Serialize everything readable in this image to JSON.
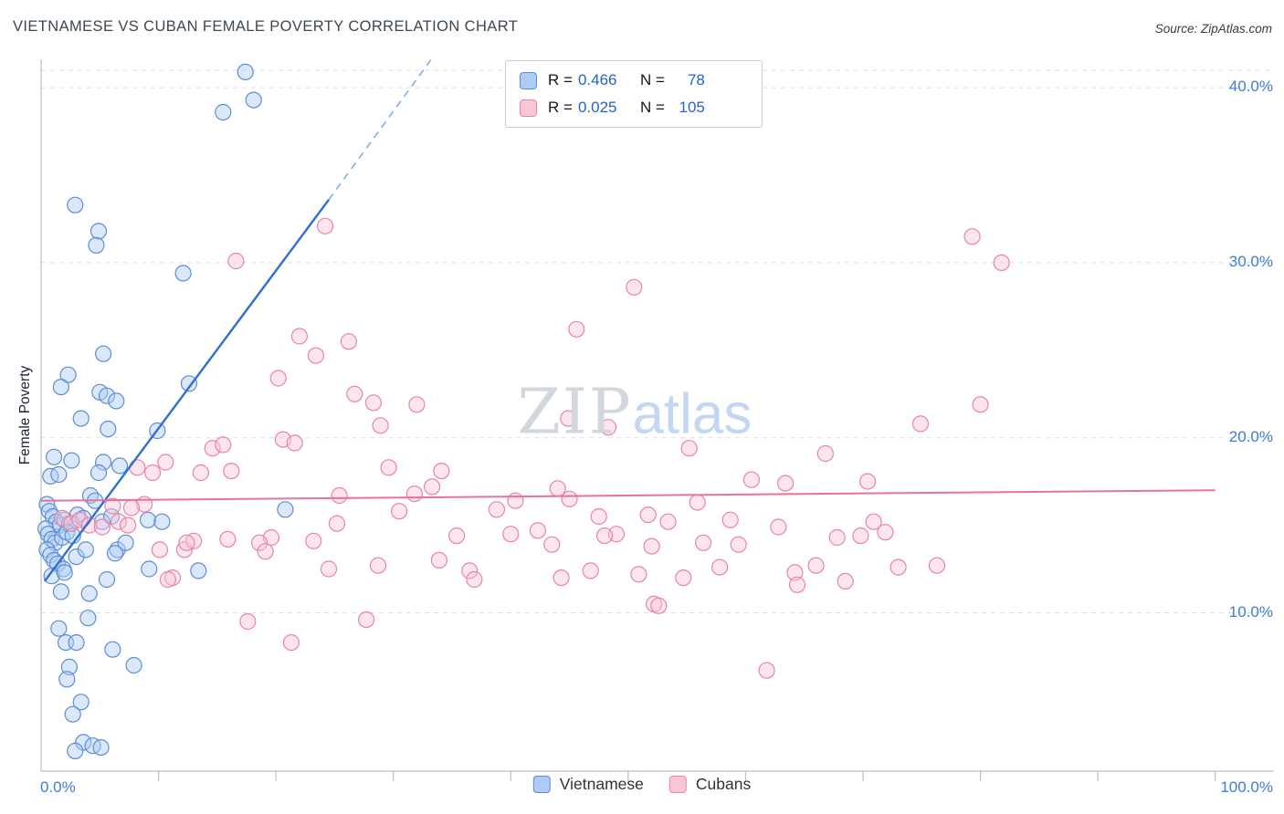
{
  "header": {
    "title": "VIETNAMESE VS CUBAN FEMALE POVERTY CORRELATION CHART",
    "source": "Source: ZipAtlas.com"
  },
  "watermark": {
    "part1": "ZIP",
    "part2": "atlas"
  },
  "legend_box": {
    "rows": [
      {
        "r_label": "R =",
        "r_value": "0.466",
        "n_label": "N =",
        "n_value": "78"
      },
      {
        "r_label": "R =",
        "r_value": "0.025",
        "n_label": "N =",
        "n_value": "105"
      }
    ]
  },
  "axes": {
    "y_axis_label": "Female Poverty",
    "y_tick_labels": [
      "40.0%",
      "30.0%",
      "20.0%",
      "10.0%"
    ],
    "x_first_label": "0.0%",
    "x_last_label": "100.0%"
  },
  "bottom_legend": {
    "items": [
      {
        "label": "Vietnamese"
      },
      {
        "label": "Cubans"
      }
    ]
  },
  "colors": {
    "accent_value_blue": "#2563c9",
    "tick_label_blue": "#3b7dd8",
    "grid": "#dcdfe3",
    "axis": "#b9bfc6",
    "series": [
      {
        "fill": "#aecbf5",
        "stroke": "#5b8dd6",
        "line": "#2f6fd0",
        "dash": "#85ade6"
      },
      {
        "fill": "#f9c6d8",
        "stroke": "#e884a8",
        "line": "#e8729c",
        "dash": "#e8729c"
      }
    ]
  },
  "chart_data": {
    "type": "scatter",
    "title": "VIETNAMESE VS CUBAN FEMALE POVERTY CORRELATION CHART",
    "ylabel": "Female Poverty",
    "xlim": [
      0,
      105
    ],
    "ylim": [
      0.95,
      41.0
    ],
    "x_ticks": [
      10,
      20,
      30,
      40,
      50,
      60,
      70,
      80,
      90,
      100
    ],
    "grid_y": [
      10,
      20,
      30,
      40
    ],
    "legend_position": "bottom-center",
    "series": [
      {
        "name": "Vietnamese",
        "R": 0.466,
        "N": 78,
        "points": [
          [
            17.4,
            40.9
          ],
          [
            18.1,
            39.3
          ],
          [
            15.5,
            38.6
          ],
          [
            2.9,
            33.3
          ],
          [
            4.9,
            31.8
          ],
          [
            4.7,
            31.0
          ],
          [
            12.1,
            29.4
          ],
          [
            5.3,
            24.8
          ],
          [
            2.3,
            23.6
          ],
          [
            1.7,
            22.9
          ],
          [
            5.0,
            22.6
          ],
          [
            5.6,
            22.4
          ],
          [
            6.4,
            22.1
          ],
          [
            12.6,
            23.1
          ],
          [
            3.4,
            21.1
          ],
          [
            5.7,
            20.5
          ],
          [
            9.9,
            20.4
          ],
          [
            1.1,
            18.9
          ],
          [
            2.6,
            18.7
          ],
          [
            6.7,
            18.4
          ],
          [
            5.3,
            18.6
          ],
          [
            0.8,
            17.8
          ],
          [
            1.5,
            17.9
          ],
          [
            4.9,
            18.0
          ],
          [
            20.8,
            15.9
          ],
          [
            0.5,
            16.2
          ],
          [
            0.7,
            15.8
          ],
          [
            1.0,
            15.5
          ],
          [
            1.3,
            15.2
          ],
          [
            1.6,
            15.0
          ],
          [
            2.0,
            15.3
          ],
          [
            2.4,
            15.1
          ],
          [
            3.1,
            15.6
          ],
          [
            3.6,
            15.4
          ],
          [
            4.2,
            16.7
          ],
          [
            4.6,
            16.4
          ],
          [
            0.4,
            14.8
          ],
          [
            0.6,
            14.5
          ],
          [
            0.9,
            14.2
          ],
          [
            1.2,
            14.0
          ],
          [
            1.8,
            14.3
          ],
          [
            2.2,
            14.6
          ],
          [
            2.7,
            14.4
          ],
          [
            5.2,
            15.2
          ],
          [
            6.0,
            15.5
          ],
          [
            9.1,
            15.3
          ],
          [
            10.3,
            15.2
          ],
          [
            0.5,
            13.6
          ],
          [
            0.8,
            13.3
          ],
          [
            1.1,
            13.0
          ],
          [
            1.4,
            12.8
          ],
          [
            1.9,
            12.5
          ],
          [
            3.0,
            13.2
          ],
          [
            3.8,
            13.6
          ],
          [
            6.5,
            13.6
          ],
          [
            7.2,
            14.0
          ],
          [
            6.3,
            13.4
          ],
          [
            0.9,
            12.1
          ],
          [
            2.0,
            12.3
          ],
          [
            5.6,
            11.9
          ],
          [
            9.2,
            12.5
          ],
          [
            13.4,
            12.4
          ],
          [
            4.1,
            11.1
          ],
          [
            1.7,
            11.2
          ],
          [
            4.0,
            9.7
          ],
          [
            1.5,
            9.1
          ],
          [
            2.1,
            8.3
          ],
          [
            3.0,
            8.3
          ],
          [
            6.1,
            7.9
          ],
          [
            7.9,
            7.0
          ],
          [
            2.4,
            6.9
          ],
          [
            2.2,
            6.2
          ],
          [
            3.4,
            4.9
          ],
          [
            2.7,
            4.2
          ],
          [
            3.6,
            2.6
          ],
          [
            4.4,
            2.4
          ],
          [
            2.9,
            2.1
          ],
          [
            5.1,
            2.3
          ]
        ]
      },
      {
        "name": "Cubans",
        "R": 0.025,
        "N": 105,
        "points": [
          [
            24.2,
            32.1
          ],
          [
            16.6,
            30.1
          ],
          [
            50.5,
            28.6
          ],
          [
            45.6,
            26.2
          ],
          [
            79.3,
            31.5
          ],
          [
            81.8,
            30.0
          ],
          [
            22.0,
            25.8
          ],
          [
            26.2,
            25.5
          ],
          [
            23.4,
            24.7
          ],
          [
            20.2,
            23.4
          ],
          [
            26.7,
            22.5
          ],
          [
            28.3,
            22.0
          ],
          [
            32.0,
            21.9
          ],
          [
            80.0,
            21.9
          ],
          [
            44.9,
            21.1
          ],
          [
            48.3,
            20.6
          ],
          [
            28.9,
            20.7
          ],
          [
            74.9,
            20.8
          ],
          [
            20.6,
            19.9
          ],
          [
            21.6,
            19.7
          ],
          [
            14.6,
            19.4
          ],
          [
            15.5,
            19.6
          ],
          [
            55.2,
            19.4
          ],
          [
            66.8,
            19.1
          ],
          [
            29.6,
            18.3
          ],
          [
            16.2,
            18.1
          ],
          [
            13.6,
            18.0
          ],
          [
            34.1,
            18.1
          ],
          [
            60.5,
            17.6
          ],
          [
            70.4,
            17.5
          ],
          [
            63.4,
            17.4
          ],
          [
            8.2,
            18.3
          ],
          [
            9.5,
            18.0
          ],
          [
            10.6,
            18.6
          ],
          [
            8.8,
            16.2
          ],
          [
            7.7,
            16.0
          ],
          [
            6.1,
            16.1
          ],
          [
            1.8,
            15.4
          ],
          [
            2.6,
            15.1
          ],
          [
            3.3,
            15.3
          ],
          [
            4.1,
            15.0
          ],
          [
            5.2,
            14.9
          ],
          [
            6.6,
            15.2
          ],
          [
            7.4,
            15.0
          ],
          [
            12.2,
            13.6
          ],
          [
            10.1,
            13.6
          ],
          [
            13.0,
            14.1
          ],
          [
            15.9,
            14.2
          ],
          [
            12.4,
            14.0
          ],
          [
            11.2,
            12.0
          ],
          [
            10.8,
            11.9
          ],
          [
            25.4,
            16.7
          ],
          [
            25.2,
            15.1
          ],
          [
            23.2,
            14.1
          ],
          [
            19.6,
            14.3
          ],
          [
            18.6,
            14.0
          ],
          [
            19.1,
            13.5
          ],
          [
            24.5,
            12.5
          ],
          [
            28.7,
            12.7
          ],
          [
            30.5,
            15.8
          ],
          [
            33.9,
            13.0
          ],
          [
            36.5,
            12.4
          ],
          [
            36.9,
            11.9
          ],
          [
            31.8,
            16.8
          ],
          [
            33.3,
            17.2
          ],
          [
            38.8,
            15.9
          ],
          [
            35.4,
            14.4
          ],
          [
            40.0,
            14.5
          ],
          [
            42.3,
            14.7
          ],
          [
            40.4,
            16.4
          ],
          [
            44.0,
            17.1
          ],
          [
            45.0,
            16.5
          ],
          [
            47.5,
            15.5
          ],
          [
            49.0,
            14.5
          ],
          [
            43.5,
            13.9
          ],
          [
            46.8,
            12.4
          ],
          [
            44.3,
            12.0
          ],
          [
            51.7,
            15.6
          ],
          [
            53.4,
            15.2
          ],
          [
            55.9,
            16.3
          ],
          [
            52.0,
            13.8
          ],
          [
            56.4,
            14.0
          ],
          [
            57.8,
            12.6
          ],
          [
            54.7,
            12.0
          ],
          [
            58.7,
            15.3
          ],
          [
            62.8,
            14.9
          ],
          [
            64.2,
            12.3
          ],
          [
            66.0,
            12.7
          ],
          [
            68.5,
            11.8
          ],
          [
            69.8,
            14.4
          ],
          [
            71.9,
            14.6
          ],
          [
            73.0,
            12.6
          ],
          [
            76.3,
            12.7
          ],
          [
            64.4,
            11.6
          ],
          [
            67.8,
            14.3
          ],
          [
            70.9,
            15.2
          ],
          [
            17.6,
            9.5
          ],
          [
            27.7,
            9.6
          ],
          [
            21.3,
            8.3
          ],
          [
            61.8,
            6.7
          ],
          [
            52.2,
            10.5
          ],
          [
            48.0,
            14.4
          ],
          [
            50.9,
            12.2
          ],
          [
            59.4,
            13.9
          ],
          [
            52.6,
            10.4
          ]
        ]
      }
    ],
    "trend_lines": [
      {
        "series": "Vietnamese",
        "x1": 0.3,
        "y1": 11.8,
        "x2": 24.5,
        "y2": 33.6,
        "dash_to": [
          33.2,
          41.6
        ]
      },
      {
        "series": "Cubans",
        "x1": 0.0,
        "y1": 16.4,
        "x2": 100.0,
        "y2": 17.0
      }
    ]
  }
}
